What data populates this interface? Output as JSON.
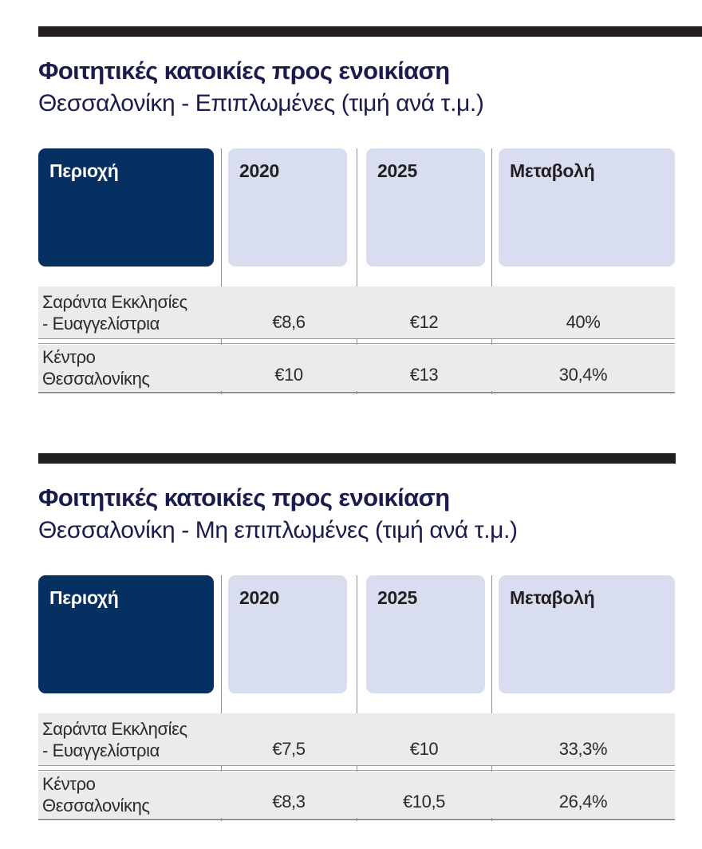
{
  "colors": {
    "top_bar": "#231f20",
    "title_navy": "#1b1c4e",
    "header_dark_bg": "#053061",
    "header_dark_text": "#ffffff",
    "header_light_bg": "#d8ddf0",
    "row_bg": "#ebebeb",
    "rule_gray": "#8f8f8f",
    "body_text": "#2b2b2b"
  },
  "sections": [
    {
      "title": "Φοιτητικές κατοικίες προς ενοικίαση",
      "subtitle": "Θεσσαλονίκη - Επιπλωμένες (τιμή ανά τ.μ.)",
      "columns": [
        "Περιοχή",
        "2020",
        "2025",
        "Μεταβολή"
      ],
      "rows": [
        {
          "area_lines": [
            "Σαράντα Εκκλησίες",
            "- Ευαγγελίστρια"
          ],
          "values": [
            "€8,6",
            "€12",
            "40%"
          ]
        },
        {
          "area_lines": [
            "Κέντρο",
            "Θεσσαλονίκης"
          ],
          "values": [
            "€10",
            "€13",
            "30,4%"
          ]
        }
      ]
    },
    {
      "title": "Φοιτητικές κατοικίες προς ενοικίαση",
      "subtitle": "Θεσσαλονίκη - Μη επιπλωμένες (τιμή ανά τ.μ.)",
      "columns": [
        "Περιοχή",
        "2020",
        "2025",
        "Μεταβολή"
      ],
      "rows": [
        {
          "area_lines": [
            "Σαράντα Εκκλησίες",
            "- Ευαγγελίστρια"
          ],
          "values": [
            "€7,5",
            "€10",
            "33,3%"
          ]
        },
        {
          "area_lines": [
            "Κέντρο",
            "Θεσσαλονίκης"
          ],
          "values": [
            "€8,3",
            "€10,5",
            "26,4%"
          ]
        }
      ]
    }
  ],
  "chart_data": [
    {
      "type": "table",
      "title": "Φοιτητικές κατοικίες προς ενοικίαση",
      "subtitle": "Θεσσαλονίκη - Επιπλωμένες (τιμή ανά τ.μ.)",
      "columns": [
        "Περιοχή",
        "2020",
        "2025",
        "Μεταβολή"
      ],
      "rows": [
        [
          "Σαράντα Εκκλησίες - Ευαγγελίστρια",
          "€8,6",
          "€12",
          "40%"
        ],
        [
          "Κέντρο Θεσσαλονίκης",
          "€10",
          "€13",
          "30,4%"
        ]
      ]
    },
    {
      "type": "table",
      "title": "Φοιτητικές κατοικίες προς ενοικίαση",
      "subtitle": "Θεσσαλονίκη - Μη επιπλωμένες (τιμή ανά τ.μ.)",
      "columns": [
        "Περιοχή",
        "2020",
        "2025",
        "Μεταβολή"
      ],
      "rows": [
        [
          "Σαράντα Εκκλησίες - Ευαγγελίστρια",
          "€7,5",
          "€10",
          "33,3%"
        ],
        [
          "Κέντρο Θεσσαλονίκης",
          "€8,3",
          "€10,5",
          "26,4%"
        ]
      ]
    }
  ]
}
